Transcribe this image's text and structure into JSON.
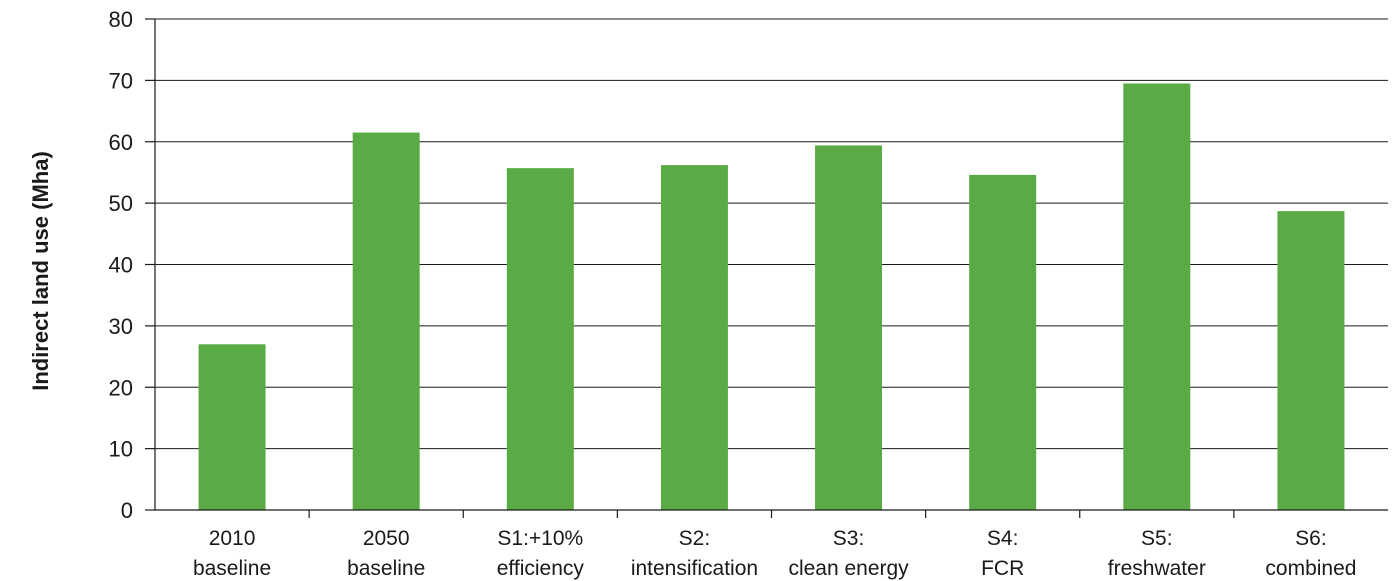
{
  "chart_data": {
    "type": "bar",
    "title": "",
    "xlabel": "",
    "ylabel": "Indirect land use (Mha)",
    "ylim": [
      0,
      80
    ],
    "yticks": [
      0,
      10,
      20,
      30,
      40,
      50,
      60,
      70,
      80
    ],
    "grid": true,
    "categories": [
      [
        "2010",
        "baseline"
      ],
      [
        "2050",
        "baseline"
      ],
      [
        "S1:+10%",
        "efficiency"
      ],
      [
        "S2:",
        "intensification"
      ],
      [
        "S3:",
        "clean energy"
      ],
      [
        "S4:",
        "FCR"
      ],
      [
        "S5:",
        "freshwater"
      ],
      [
        "S6:",
        "combined"
      ]
    ],
    "values": [
      27,
      61.5,
      55.7,
      56.2,
      59.4,
      54.6,
      69.5,
      48.7
    ],
    "bar_color": "#5aab46"
  }
}
